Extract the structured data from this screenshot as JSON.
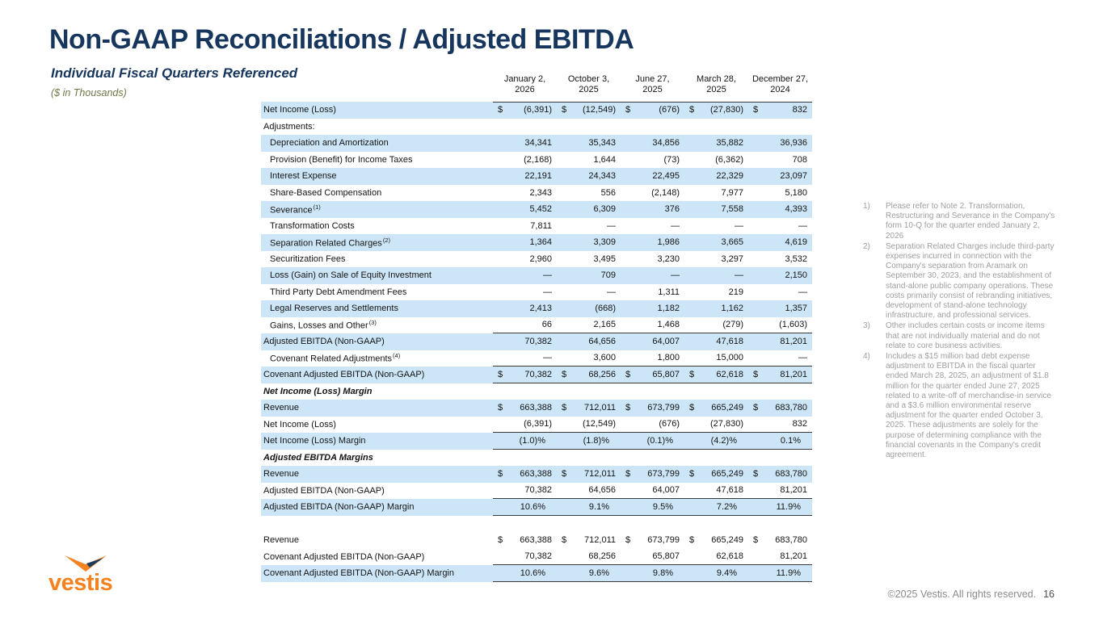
{
  "title": "Non-GAAP Reconciliations / Adjusted EBITDA",
  "subtitle": "Individual Fiscal Quarters Referenced",
  "units_note": "($ in Thousands)",
  "colors": {
    "navy": "#17365D",
    "orange": "#F58220",
    "row_stripe": "#CDE6F7",
    "footnote_gray": "#9E9E9E",
    "units_olive": "#6E7747"
  },
  "table": {
    "columns": [
      {
        "line1": "January 2,",
        "line2": "2026"
      },
      {
        "line1": "October 3,",
        "line2": "2025"
      },
      {
        "line1": "June 27,",
        "line2": "2025"
      },
      {
        "line1": "March 28,",
        "line2": "2025"
      },
      {
        "line1": "December 27,",
        "line2": "2024"
      }
    ],
    "rows": [
      {
        "label": "Net Income (Loss)",
        "dollar": true,
        "shaded": true,
        "values": [
          "(6,391)",
          "(12,549)",
          "(676)",
          "(27,830)",
          "832"
        ]
      },
      {
        "label": "Adjustments:",
        "values": [
          "",
          "",
          "",
          "",
          ""
        ]
      },
      {
        "label": "Depreciation and Amortization",
        "indent": true,
        "shaded": true,
        "values": [
          "34,341",
          "35,343",
          "34,856",
          "35,882",
          "36,936"
        ]
      },
      {
        "label": "Provision (Benefit) for Income Taxes",
        "indent": true,
        "values": [
          "(2,168)",
          "1,644",
          "(73)",
          "(6,362)",
          "708"
        ]
      },
      {
        "label": "Interest Expense",
        "indent": true,
        "shaded": true,
        "values": [
          "22,191",
          "24,343",
          "22,495",
          "22,329",
          "23,097"
        ]
      },
      {
        "label": "Share-Based Compensation",
        "indent": true,
        "values": [
          "2,343",
          "556",
          "(2,148)",
          "7,977",
          "5,180"
        ]
      },
      {
        "label": "Severance",
        "sup": "(1)",
        "indent": true,
        "shaded": true,
        "values": [
          "5,452",
          "6,309",
          "376",
          "7,558",
          "4,393"
        ]
      },
      {
        "label": "Transformation Costs",
        "indent": true,
        "values": [
          "7,811",
          "—",
          "—",
          "—",
          "—"
        ]
      },
      {
        "label": "Separation Related Charges",
        "sup": "(2)",
        "indent": true,
        "shaded": true,
        "values": [
          "1,364",
          "3,309",
          "1,986",
          "3,665",
          "4,619"
        ]
      },
      {
        "label": "Securitization Fees",
        "indent": true,
        "values": [
          "2,960",
          "3,495",
          "3,230",
          "3,297",
          "3,532"
        ]
      },
      {
        "label": "Loss (Gain) on Sale of Equity Investment",
        "indent": true,
        "shaded": true,
        "values": [
          "—",
          "709",
          "—",
          "—",
          "2,150"
        ]
      },
      {
        "label": "Third Party Debt Amendment Fees",
        "indent": true,
        "values": [
          "—",
          "—",
          "1,311",
          "219",
          "—"
        ]
      },
      {
        "label": "Legal Reserves and Settlements",
        "indent": true,
        "shaded": true,
        "values": [
          "2,413",
          "(668)",
          "1,182",
          "1,162",
          "1,357"
        ]
      },
      {
        "label": "Gains, Losses and Other",
        "sup": "(3)",
        "indent": true,
        "line_below": true,
        "values": [
          "66",
          "2,165",
          "1,468",
          "(279)",
          "(1,603)"
        ]
      },
      {
        "label": "Adjusted EBITDA (Non-GAAP)",
        "shaded": true,
        "values": [
          "70,382",
          "64,656",
          "64,007",
          "47,618",
          "81,201"
        ]
      },
      {
        "label": "Covenant Related Adjustments",
        "sup": "(4)",
        "indent": true,
        "line_below": true,
        "values": [
          "—",
          "3,600",
          "1,800",
          "15,000",
          "—"
        ]
      },
      {
        "label": "Covenant Adjusted EBITDA (Non-GAAP)",
        "dollar": true,
        "shaded": true,
        "line_below": true,
        "values": [
          "70,382",
          "68,256",
          "65,807",
          "62,618",
          "81,201"
        ]
      },
      {
        "label": "Net Income (Loss) Margin",
        "section": true,
        "values": [
          "",
          "",
          "",
          "",
          ""
        ]
      },
      {
        "label": "Revenue",
        "dollar": true,
        "shaded": true,
        "values": [
          "663,388",
          "712,011",
          "673,799",
          "665,249",
          "683,780"
        ]
      },
      {
        "label": "Net Income (Loss)",
        "line_below": true,
        "values": [
          "(6,391)",
          "(12,549)",
          "(676)",
          "(27,830)",
          "832"
        ]
      },
      {
        "label": "Net Income (Loss) Margin",
        "shaded": true,
        "pct": true,
        "line_below": true,
        "values": [
          "(1.0)%",
          "(1.8)%",
          "(0.1)%",
          "(4.2)%",
          "0.1%"
        ]
      },
      {
        "label": "Adjusted EBITDA Margins",
        "section": true,
        "values": [
          "",
          "",
          "",
          "",
          ""
        ]
      },
      {
        "label": "Revenue",
        "dollar": true,
        "shaded": true,
        "values": [
          "663,388",
          "712,011",
          "673,799",
          "665,249",
          "683,780"
        ]
      },
      {
        "label": "Adjusted EBITDA (Non-GAAP)",
        "line_below": true,
        "values": [
          "70,382",
          "64,656",
          "64,007",
          "47,618",
          "81,201"
        ]
      },
      {
        "label": "Adjusted EBITDA (Non-GAAP) Margin",
        "shaded": true,
        "pct": true,
        "line_below": true,
        "values": [
          "10.6%",
          "9.1%",
          "9.5%",
          "7.2%",
          "11.9%"
        ]
      },
      {
        "spacer": true
      },
      {
        "label": "Revenue",
        "dollar": true,
        "values": [
          "663,388",
          "712,011",
          "673,799",
          "665,249",
          "683,780"
        ]
      },
      {
        "label": "Covenant Adjusted EBITDA (Non-GAAP)",
        "line_below": true,
        "values": [
          "70,382",
          "68,256",
          "65,807",
          "62,618",
          "81,201"
        ]
      },
      {
        "label": "Covenant Adjusted EBITDA (Non-GAAP) Margin",
        "shaded": true,
        "pct": true,
        "line_below": true,
        "values": [
          "10.6%",
          "9.6%",
          "9.8%",
          "9.4%",
          "11.9%"
        ]
      }
    ]
  },
  "footnotes": [
    {
      "num": "1)",
      "text": "Please refer to Note 2. Transformation, Restructuring and Severance in the Company's form 10-Q for the quarter ended January 2, 2026"
    },
    {
      "num": "2)",
      "text": "Separation Related Charges include third-party expenses incurred in connection with the Company's separation from Aramark on September 30, 2023, and the establishment of stand-alone public company operations. These costs primarily consist of rebranding initiatives, development of stand-alone technology infrastructure, and professional services."
    },
    {
      "num": "3)",
      "text": "Other includes certain costs or income items that are not individually material and do not relate to core business activities."
    },
    {
      "num": "4)",
      "text": "Includes a $15 million bad debt expense adjustment to EBITDA in the fiscal quarter ended March 28, 2025, an adjustment of $1.8 million for the quarter ended June 27, 2025 related to a write-off of merchandise-in service and a $3.6 million environmental reserve adjustment for the quarter ended October 3, 2025. These adjustments are solely for the purpose of determining compliance with the financial covenants in the Company's credit agreement."
    }
  ],
  "logo": {
    "wordmark": "vestis"
  },
  "footer": {
    "copyright": "©2025 Vestis. All rights reserved.",
    "page": "16"
  }
}
